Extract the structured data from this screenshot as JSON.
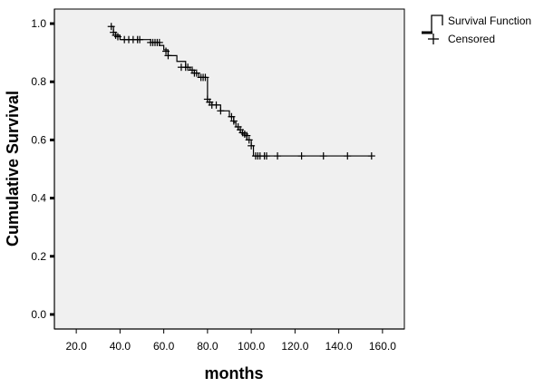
{
  "chart_data": {
    "type": "line",
    "xlabel": "months",
    "ylabel": "Cumulative Survival",
    "xlim": [
      10,
      170
    ],
    "ylim": [
      -0.05,
      1.05
    ],
    "xticks": [
      20,
      40,
      60,
      80,
      100,
      120,
      140,
      160
    ],
    "xtick_labels": [
      "20.0",
      "40.0",
      "60.0",
      "80.0",
      "100.0",
      "120.0",
      "140.0",
      "160.0"
    ],
    "yticks": [
      0.0,
      0.2,
      0.4,
      0.6,
      0.8,
      1.0
    ],
    "ytick_labels": [
      "0.0",
      "0.2",
      "0.4",
      "0.6",
      "0.8",
      "1.0"
    ],
    "grid": false,
    "legend_position": "right",
    "background": "#f0f0f0",
    "line_color": "#000000",
    "series": [
      {
        "name": "Survival Function",
        "style": "step",
        "x": [
          36,
          37,
          38,
          40,
          54,
          58,
          60,
          62,
          66,
          70,
          72,
          74,
          76,
          80,
          82,
          86,
          90,
          92,
          93,
          94,
          95,
          96,
          97,
          98,
          100,
          101,
          155
        ],
        "y": [
          0.99,
          0.97,
          0.96,
          0.945,
          0.935,
          0.925,
          0.91,
          0.89,
          0.87,
          0.85,
          0.84,
          0.83,
          0.815,
          0.73,
          0.72,
          0.7,
          0.68,
          0.66,
          0.645,
          0.635,
          0.625,
          0.62,
          0.615,
          0.6,
          0.58,
          0.545,
          0.545
        ]
      },
      {
        "name": "Censored",
        "style": "marker",
        "x": [
          36,
          37,
          38,
          39,
          42,
          44,
          46,
          48,
          49,
          54,
          55,
          56,
          57,
          58,
          61,
          62,
          68,
          70,
          71,
          73,
          74,
          75,
          77,
          78,
          79,
          80,
          81,
          82,
          84,
          86,
          91,
          92,
          94,
          95,
          96,
          97,
          98,
          99,
          100,
          102,
          103,
          104,
          106,
          107,
          112,
          123,
          133,
          144,
          155
        ],
        "y": [
          0.99,
          0.97,
          0.96,
          0.955,
          0.945,
          0.945,
          0.945,
          0.945,
          0.945,
          0.935,
          0.935,
          0.935,
          0.935,
          0.935,
          0.905,
          0.89,
          0.85,
          0.85,
          0.85,
          0.84,
          0.83,
          0.83,
          0.815,
          0.815,
          0.815,
          0.74,
          0.73,
          0.72,
          0.72,
          0.7,
          0.68,
          0.665,
          0.645,
          0.635,
          0.625,
          0.62,
          0.615,
          0.6,
          0.58,
          0.545,
          0.545,
          0.545,
          0.545,
          0.545,
          0.545,
          0.545,
          0.545,
          0.545,
          0.545
        ]
      }
    ]
  }
}
